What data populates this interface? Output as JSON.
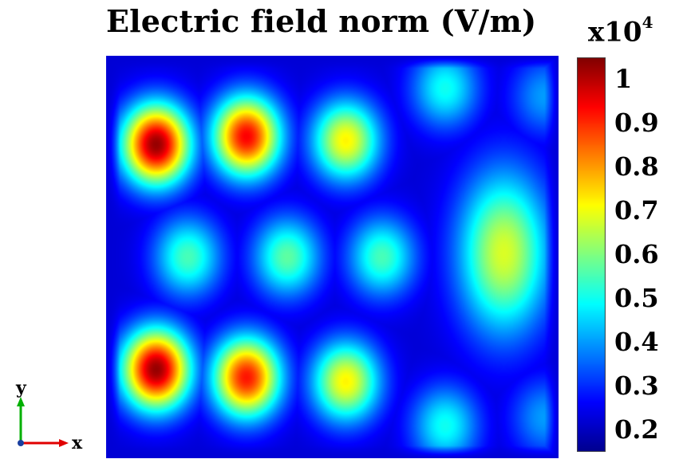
{
  "title": "Electric field norm (V/m)",
  "colorbar": {
    "multiplier_base": "x10",
    "multiplier_exp": "4",
    "ticks": [
      "1",
      "0.9",
      "0.8",
      "0.7",
      "0.6",
      "0.5",
      "0.4",
      "0.3",
      "0.2"
    ],
    "colormap": [
      "#00008f",
      "#0000ff",
      "#0080ff",
      "#00ffff",
      "#80ff80",
      "#ffff00",
      "#ff8000",
      "#ff0000",
      "#800000"
    ]
  },
  "axes_indicator": {
    "y_label": "y",
    "x_label": "x",
    "y_color": "#00b000",
    "x_color": "#e00000"
  },
  "chart_data": {
    "type": "heatmap",
    "title": "Electric field norm (V/m)",
    "colorbar_range": [
      0.15,
      1.05
    ],
    "colorbar_multiplier": "x10^4",
    "colorbar_ticks": [
      1,
      0.9,
      0.8,
      0.7,
      0.6,
      0.5,
      0.4,
      0.3,
      0.2
    ],
    "hotspots": [
      {
        "x": 0.11,
        "y": 0.22,
        "value": 1.03
      },
      {
        "x": 0.31,
        "y": 0.2,
        "value": 0.94
      },
      {
        "x": 0.53,
        "y": 0.21,
        "value": 0.72
      },
      {
        "x": 0.11,
        "y": 0.78,
        "value": 1.03
      },
      {
        "x": 0.31,
        "y": 0.8,
        "value": 0.92
      },
      {
        "x": 0.53,
        "y": 0.81,
        "value": 0.72
      },
      {
        "x": 0.88,
        "y": 0.49,
        "value": 0.68
      },
      {
        "x": 0.18,
        "y": 0.5,
        "value": 0.55
      },
      {
        "x": 0.4,
        "y": 0.5,
        "value": 0.57
      },
      {
        "x": 0.61,
        "y": 0.5,
        "value": 0.55
      },
      {
        "x": 0.75,
        "y": 0.08,
        "value": 0.5
      },
      {
        "x": 0.75,
        "y": 0.92,
        "value": 0.5
      },
      {
        "x": 0.97,
        "y": 0.1,
        "value": 0.4
      },
      {
        "x": 0.97,
        "y": 0.9,
        "value": 0.4
      }
    ]
  }
}
